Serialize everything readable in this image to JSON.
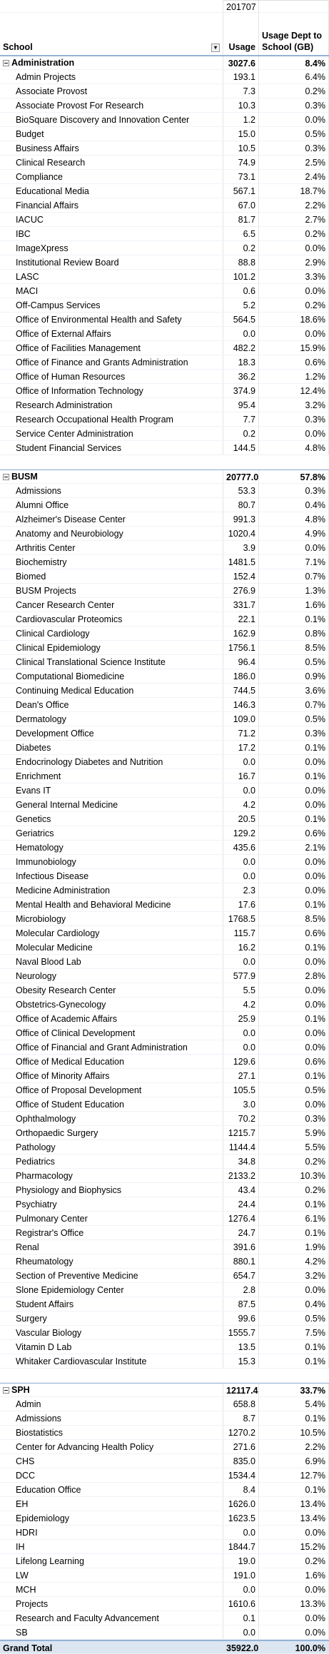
{
  "header": {
    "period": "201707",
    "row_label": "School",
    "usage_label": "Usage",
    "pct_label": "Usage Dept to School (GB)"
  },
  "groups": [
    {
      "name": "Administration",
      "usage": "3027.6",
      "pct": "8.4%",
      "rows": [
        [
          "Admin Projects",
          "193.1",
          "6.4%"
        ],
        [
          "Associate Provost",
          "7.3",
          "0.2%"
        ],
        [
          "Associate Provost For Research",
          "10.3",
          "0.3%"
        ],
        [
          "BioSquare Discovery and Innovation Center",
          "1.2",
          "0.0%"
        ],
        [
          "Budget",
          "15.0",
          "0.5%"
        ],
        [
          "Business Affairs",
          "10.5",
          "0.3%"
        ],
        [
          "Clinical Research",
          "74.9",
          "2.5%"
        ],
        [
          "Compliance",
          "73.1",
          "2.4%"
        ],
        [
          "Educational Media",
          "567.1",
          "18.7%"
        ],
        [
          "Financial Affairs",
          "67.0",
          "2.2%"
        ],
        [
          "IACUC",
          "81.7",
          "2.7%"
        ],
        [
          "IBC",
          "6.5",
          "0.2%"
        ],
        [
          "ImageXpress",
          "0.2",
          "0.0%"
        ],
        [
          "Institutional Review Board",
          "88.8",
          "2.9%"
        ],
        [
          "LASC",
          "101.2",
          "3.3%"
        ],
        [
          "MACI",
          "0.6",
          "0.0%"
        ],
        [
          "Off-Campus Services",
          "5.2",
          "0.2%"
        ],
        [
          "Office of Environmental Health and Safety",
          "564.5",
          "18.6%"
        ],
        [
          "Office of External Affairs",
          "0.0",
          "0.0%"
        ],
        [
          "Office of Facilities Management",
          "482.2",
          "15.9%"
        ],
        [
          "Office of Finance and Grants Administration",
          "18.3",
          "0.6%"
        ],
        [
          "Office of Human Resources",
          "36.2",
          "1.2%"
        ],
        [
          "Office of Information Technology",
          "374.9",
          "12.4%"
        ],
        [
          "Research Administration",
          "95.4",
          "3.2%"
        ],
        [
          "Research Occupational Health Program",
          "7.7",
          "0.3%"
        ],
        [
          "Service Center Administration",
          "0.2",
          "0.0%"
        ],
        [
          "Student Financial Services",
          "144.5",
          "4.8%"
        ]
      ]
    },
    {
      "name": "BUSM",
      "usage": "20777.0",
      "pct": "57.8%",
      "rows": [
        [
          "Admissions",
          "53.3",
          "0.3%"
        ],
        [
          "Alumni Office",
          "80.7",
          "0.4%"
        ],
        [
          "Alzheimer's Disease Center",
          "991.3",
          "4.8%"
        ],
        [
          "Anatomy and Neurobiology",
          "1020.4",
          "4.9%"
        ],
        [
          "Arthritis Center",
          "3.9",
          "0.0%"
        ],
        [
          "Biochemistry",
          "1481.5",
          "7.1%"
        ],
        [
          "Biomed",
          "152.4",
          "0.7%"
        ],
        [
          "BUSM Projects",
          "276.9",
          "1.3%"
        ],
        [
          "Cancer Research Center",
          "331.7",
          "1.6%"
        ],
        [
          "Cardiovascular Proteomics",
          "22.1",
          "0.1%"
        ],
        [
          "Clinical Cardiology",
          "162.9",
          "0.8%"
        ],
        [
          "Clinical Epidemiology",
          "1756.1",
          "8.5%"
        ],
        [
          "Clinical Translational Science Institute",
          "96.4",
          "0.5%"
        ],
        [
          "Computational Biomedicine",
          "186.0",
          "0.9%"
        ],
        [
          "Continuing Medical Education",
          "744.5",
          "3.6%"
        ],
        [
          "Dean's Office",
          "146.3",
          "0.7%"
        ],
        [
          "Dermatology",
          "109.0",
          "0.5%"
        ],
        [
          "Development Office",
          "71.2",
          "0.3%"
        ],
        [
          "Diabetes",
          "17.2",
          "0.1%"
        ],
        [
          "Endocrinology Diabetes and Nutrition",
          "0.0",
          "0.0%"
        ],
        [
          "Enrichment",
          "16.7",
          "0.1%"
        ],
        [
          "Evans IT",
          "0.0",
          "0.0%"
        ],
        [
          "General Internal Medicine",
          "4.2",
          "0.0%"
        ],
        [
          "Genetics",
          "20.5",
          "0.1%"
        ],
        [
          "Geriatrics",
          "129.2",
          "0.6%"
        ],
        [
          "Hematology",
          "435.6",
          "2.1%"
        ],
        [
          "Immunobiology",
          "0.0",
          "0.0%"
        ],
        [
          "Infectious Disease",
          "0.0",
          "0.0%"
        ],
        [
          "Medicine Administration",
          "2.3",
          "0.0%"
        ],
        [
          "Mental Health and Behavioral Medicine",
          "17.6",
          "0.1%"
        ],
        [
          "Microbiology",
          "1768.5",
          "8.5%"
        ],
        [
          "Molecular Cardiology",
          "115.7",
          "0.6%"
        ],
        [
          "Molecular Medicine",
          "16.2",
          "0.1%"
        ],
        [
          "Naval Blood Lab",
          "0.0",
          "0.0%"
        ],
        [
          "Neurology",
          "577.9",
          "2.8%"
        ],
        [
          "Obesity Research Center",
          "5.5",
          "0.0%"
        ],
        [
          "Obstetrics-Gynecology",
          "4.2",
          "0.0%"
        ],
        [
          "Office of Academic Affairs",
          "25.9",
          "0.1%"
        ],
        [
          "Office of Clinical Development",
          "0.0",
          "0.0%"
        ],
        [
          "Office of Financial and Grant Administration",
          "0.0",
          "0.0%"
        ],
        [
          "Office of Medical Education",
          "129.6",
          "0.6%"
        ],
        [
          "Office of Minority Affairs",
          "27.1",
          "0.1%"
        ],
        [
          "Office of Proposal Development",
          "105.5",
          "0.5%"
        ],
        [
          "Office of Student Education",
          "3.0",
          "0.0%"
        ],
        [
          "Ophthalmology",
          "70.2",
          "0.3%"
        ],
        [
          "Orthopaedic Surgery",
          "1215.7",
          "5.9%"
        ],
        [
          "Pathology",
          "1144.4",
          "5.5%"
        ],
        [
          "Pediatrics",
          "34.8",
          "0.2%"
        ],
        [
          "Pharmacology",
          "2133.2",
          "10.3%"
        ],
        [
          "Physiology and Biophysics",
          "43.4",
          "0.2%"
        ],
        [
          "Psychiatry",
          "24.4",
          "0.1%"
        ],
        [
          "Pulmonary Center",
          "1276.4",
          "6.1%"
        ],
        [
          "Registrar's Office",
          "24.7",
          "0.1%"
        ],
        [
          "Renal",
          "391.6",
          "1.9%"
        ],
        [
          "Rheumatology",
          "880.1",
          "4.2%"
        ],
        [
          "Section of Preventive Medicine",
          "654.7",
          "3.2%"
        ],
        [
          "Slone Epidemiology Center",
          "2.8",
          "0.0%"
        ],
        [
          "Student Affairs",
          "87.5",
          "0.4%"
        ],
        [
          "Surgery",
          "99.6",
          "0.5%"
        ],
        [
          "Vascular Biology",
          "1555.7",
          "7.5%"
        ],
        [
          "Vitamin D Lab",
          "13.5",
          "0.1%"
        ],
        [
          "Whitaker Cardiovascular Institute",
          "15.3",
          "0.1%"
        ]
      ]
    },
    {
      "name": "SPH",
      "usage": "12117.4",
      "pct": "33.7%",
      "rows": [
        [
          "Admin",
          "658.8",
          "5.4%"
        ],
        [
          "Admissions",
          "8.7",
          "0.1%"
        ],
        [
          "Biostatistics",
          "1270.2",
          "10.5%"
        ],
        [
          "Center for Advancing Health Policy",
          "271.6",
          "2.2%"
        ],
        [
          "CHS",
          "835.0",
          "6.9%"
        ],
        [
          "DCC",
          "1534.4",
          "12.7%"
        ],
        [
          "Education Office",
          "8.4",
          "0.1%"
        ],
        [
          "EH",
          "1626.0",
          "13.4%"
        ],
        [
          "Epidemiology",
          "1623.5",
          "13.4%"
        ],
        [
          "HDRI",
          "0.0",
          "0.0%"
        ],
        [
          "IH",
          "1844.7",
          "15.2%"
        ],
        [
          "Lifelong Learning",
          "19.0",
          "0.2%"
        ],
        [
          "LW",
          "191.0",
          "1.6%"
        ],
        [
          "MCH",
          "0.0",
          "0.0%"
        ],
        [
          "Projects",
          "1610.6",
          "13.3%"
        ],
        [
          "Research and Faculty Advancement",
          "0.1",
          "0.0%"
        ],
        [
          "SB",
          "0.0",
          "0.0%"
        ]
      ]
    }
  ],
  "grand_total": {
    "label": "Grand Total",
    "usage": "35922.0",
    "pct": "100.0%"
  }
}
